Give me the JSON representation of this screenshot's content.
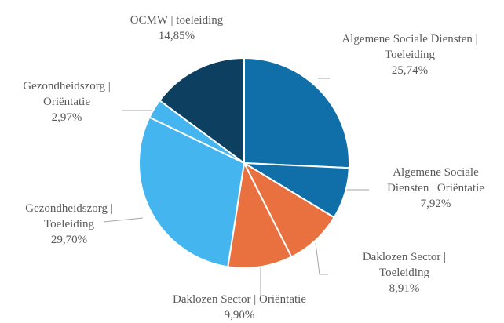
{
  "chart_data": {
    "type": "pie",
    "categories": [
      "Algemene Sociale Diensten | Toeleiding",
      "Algemene Sociale Diensten | Oriëntatie",
      "Daklozen Sector | Toeleiding",
      "Daklozen Sector | Oriëntatie",
      "Gezondheidszorg | Toeleiding",
      "Gezondheidszorg | Oriëntatie",
      "OCMW | toeleiding"
    ],
    "values": [
      25.74,
      7.92,
      8.91,
      9.9,
      29.7,
      2.97,
      14.85
    ],
    "value_labels": [
      "25,74%",
      "7,92%",
      "8,91%",
      "9,90%",
      "29,70%",
      "2,97%",
      "14,85%"
    ],
    "colors": [
      "#106fa8",
      "#106fa8",
      "#e97140",
      "#e97140",
      "#45b5f0",
      "#45b5f0",
      "#0c3f60"
    ]
  }
}
